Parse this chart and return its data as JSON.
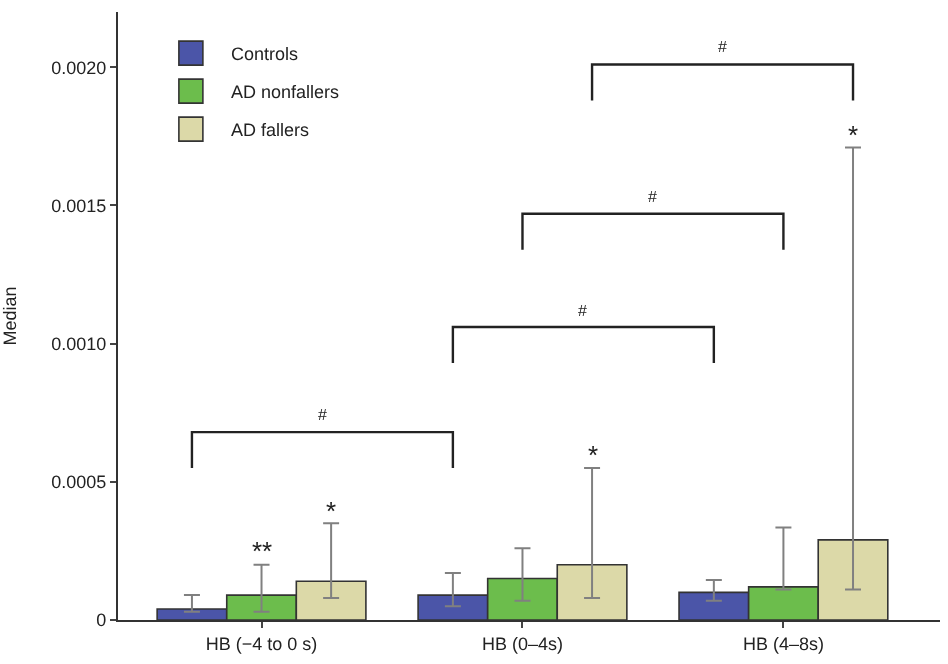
{
  "chart_data": {
    "type": "bar",
    "ylabel": "Median",
    "categories": [
      "HB (−4 to 0 s)",
      "HB (0–4s)",
      "HB (4–8s)"
    ],
    "series": [
      {
        "name": "Controls",
        "color": "#4b55a8",
        "values": [
          4e-05,
          9e-05,
          0.0001
        ],
        "errors": [
          [
            3e-05,
            9e-05
          ],
          [
            5e-05,
            0.00017
          ],
          [
            7e-05,
            0.000145
          ]
        ]
      },
      {
        "name": "AD nonfallers",
        "color": "#6cbd4c",
        "values": [
          9e-05,
          0.00015,
          0.00012
        ],
        "errors": [
          [
            3e-05,
            0.0002
          ],
          [
            7e-05,
            0.00026
          ],
          [
            0.00011,
            0.000335
          ]
        ]
      },
      {
        "name": "AD fallers",
        "color": "#dcd9a8",
        "values": [
          0.00014,
          0.0002,
          0.00029
        ],
        "errors": [
          [
            8e-05,
            0.00035
          ],
          [
            8e-05,
            0.00055
          ],
          [
            0.00011,
            0.00171
          ]
        ]
      }
    ],
    "ylim": [
      0,
      0.0022
    ],
    "yticks": [
      0,
      {
        "value": 0.0005,
        "label": "0.0005"
      },
      {
        "value": 0.001,
        "label": "0.0010"
      },
      {
        "value": 0.0015,
        "label": "0.0015"
      },
      {
        "value": 0.002,
        "label": "0.0020"
      }
    ],
    "annotations": [
      "**",
      "*",
      "*",
      "*",
      "#",
      "#",
      "#",
      "#"
    ],
    "legend": "top left"
  }
}
